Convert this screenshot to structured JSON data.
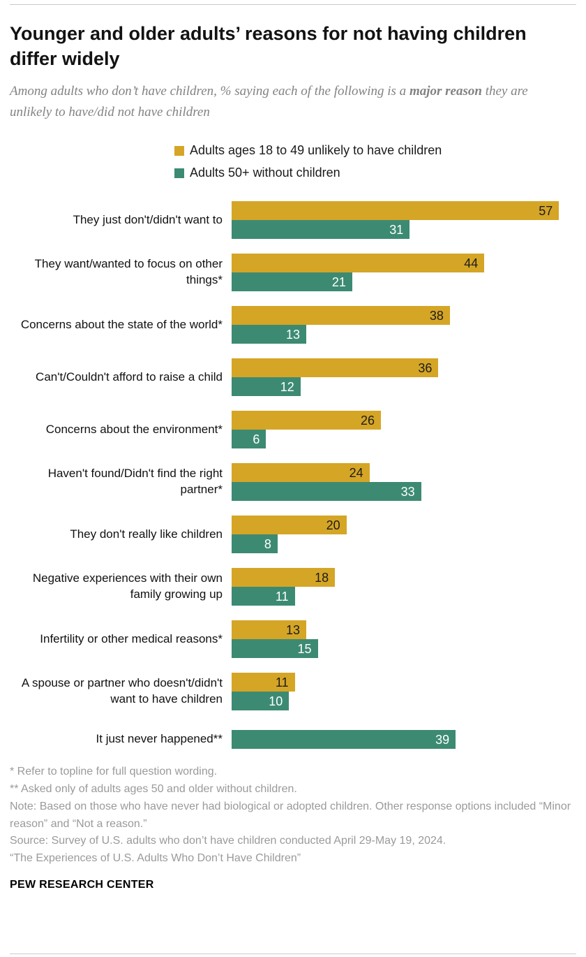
{
  "title": "Younger and older adults’ reasons for not having children differ widely",
  "subtitle": {
    "prefix": "Among adults who don’t have children, % saying each of the following is a ",
    "bold": "major reason",
    "suffix": " they are unlikely to have/did not have children"
  },
  "colors": {
    "gold": "#D5A526",
    "teal": "#3D8A73"
  },
  "legend": [
    {
      "label": "Adults ages 18 to 49 unlikely to have children",
      "color": "#D5A526"
    },
    {
      "label": "Adults 50+ without children",
      "color": "#3D8A73"
    }
  ],
  "chart_data": {
    "type": "bar",
    "orientation": "horizontal",
    "xlim": [
      0,
      60
    ],
    "grid": false,
    "legend_position": "top",
    "categories": [
      "They just don't/didn't want to",
      "They want/wanted to focus on other things*",
      "Concerns about the state of the world*",
      "Can't/Couldn't afford to raise a child",
      "Concerns about the environment*",
      "Haven't found/Didn't find the right partner*",
      "They don't really like children",
      "Negative experiences with their own family growing up",
      "Infertility or other medical reasons*",
      "A spouse or partner who doesn't/didn't want to have children",
      "It just never happened**"
    ],
    "series": [
      {
        "name": "Adults ages 18 to 49 unlikely to have children",
        "color": "#D5A526",
        "label_color": "#1d1d1d",
        "values": [
          57,
          44,
          38,
          36,
          26,
          24,
          20,
          18,
          13,
          11,
          null
        ]
      },
      {
        "name": "Adults 50+ without children",
        "color": "#3D8A73",
        "label_color": "#ffffff",
        "values": [
          31,
          21,
          13,
          12,
          6,
          33,
          8,
          11,
          15,
          10,
          39
        ]
      }
    ],
    "last_group_separated": true
  },
  "footnotes": [
    "* Refer to topline for full question wording.",
    "** Asked only of adults ages 50 and older without children.",
    "Note: Based on those who have never had biological or adopted children. Other response options included “Minor reason” and “Not a reason.”",
    "Source: Survey of U.S. adults who don’t have children conducted April 29-May 19, 2024.",
    "“The Experiences of U.S. Adults Who Don’t Have Children”"
  ],
  "footer": "PEW RESEARCH CENTER"
}
